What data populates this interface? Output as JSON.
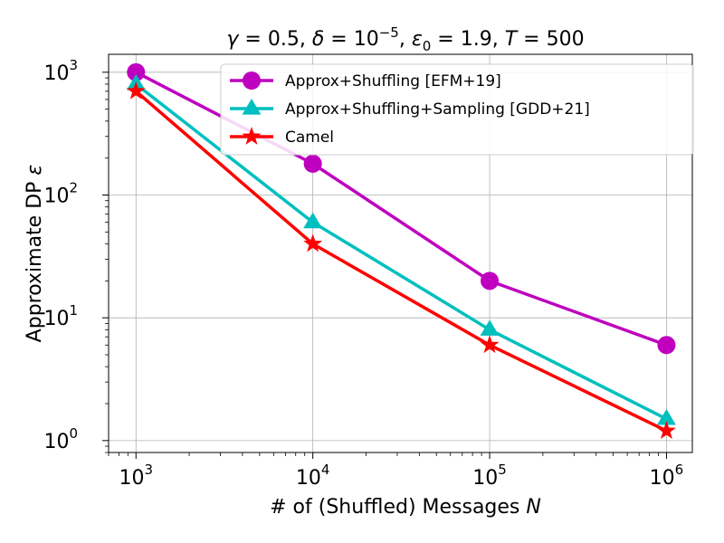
{
  "chart_data": {
    "type": "line",
    "title": "γ = 0.5, δ = 10⁻⁵, ε₀ = 1.9, T = 500",
    "xlabel": "# of (Shuffled) Messages N",
    "ylabel": "Approximate DP ε",
    "x_scale": "log",
    "y_scale": "log",
    "xlim": [
      700,
      1400000
    ],
    "ylim": [
      0.8,
      1400
    ],
    "grid": true,
    "legend_position": "top-right",
    "x": [
      1000,
      10000,
      100000,
      1000000
    ],
    "x_ticks": [
      {
        "value": 1000,
        "base": "10",
        "exp": "3"
      },
      {
        "value": 10000,
        "base": "10",
        "exp": "4"
      },
      {
        "value": 100000,
        "base": "10",
        "exp": "5"
      },
      {
        "value": 1000000,
        "base": "10",
        "exp": "6"
      }
    ],
    "y_ticks": [
      {
        "value": 1,
        "base": "10",
        "exp": "0"
      },
      {
        "value": 10,
        "base": "10",
        "exp": "1"
      },
      {
        "value": 100,
        "base": "10",
        "exp": "2"
      },
      {
        "value": 1000,
        "base": "10",
        "exp": "3"
      }
    ],
    "series": [
      {
        "name": "Approx+Shuffling [EFM+19]",
        "values": [
          1000,
          180,
          20,
          6
        ],
        "color": "#bf00bf",
        "marker": "circle"
      },
      {
        "name": "Approx+Shuffling+Sampling [GDD+21]",
        "values": [
          800,
          60,
          8,
          1.5
        ],
        "color": "#00bfbf",
        "marker": "triangle"
      },
      {
        "name": "Camel",
        "values": [
          700,
          40,
          6,
          1.2
        ],
        "color": "#ff0000",
        "marker": "star"
      }
    ]
  }
}
